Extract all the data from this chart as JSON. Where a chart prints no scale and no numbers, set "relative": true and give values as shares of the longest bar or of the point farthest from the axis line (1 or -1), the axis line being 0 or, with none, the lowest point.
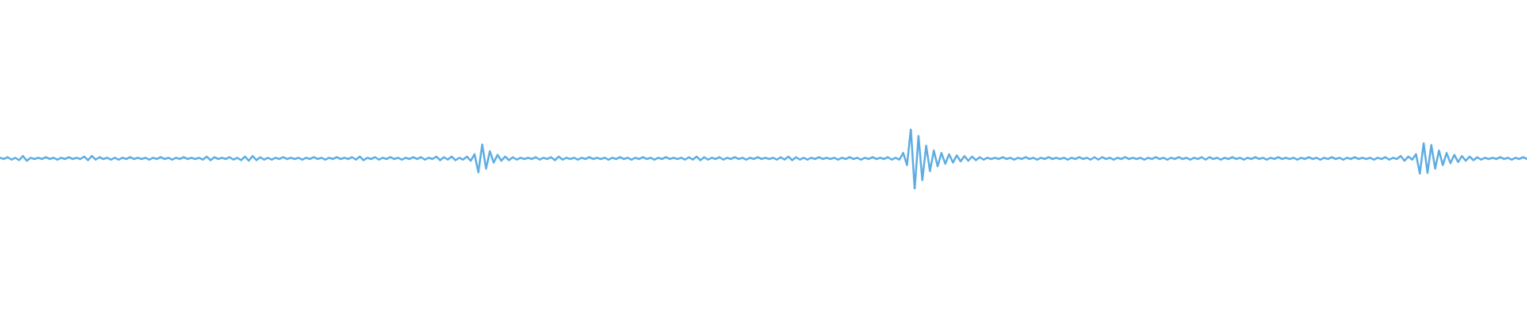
{
  "chart_data": {
    "type": "line",
    "relative": true,
    "color": "#5dade2",
    "categories": [
      null,
      null,
      null,
      null,
      null,
      null,
      null,
      null,
      null,
      null,
      null,
      null,
      null,
      null,
      null,
      null,
      null,
      null,
      null,
      null,
      null,
      null,
      null,
      null,
      null,
      null,
      null,
      null,
      null,
      null,
      null,
      null,
      null,
      null,
      null,
      null,
      null,
      null,
      null,
      null,
      null,
      null,
      null,
      null,
      null,
      null,
      null,
      null,
      null,
      null,
      null,
      null,
      null,
      null,
      null,
      null,
      null,
      null,
      null,
      null,
      null,
      null,
      null,
      null,
      null,
      null,
      null,
      null,
      null,
      null,
      null,
      null,
      null,
      null,
      null,
      null,
      null,
      null,
      null,
      null,
      null,
      null,
      null,
      null,
      null,
      null,
      null,
      null,
      null,
      null,
      null,
      null,
      null,
      null,
      null,
      null,
      null,
      null,
      null,
      null,
      null,
      null,
      null,
      null,
      null,
      null,
      null,
      null,
      null,
      null,
      null,
      null,
      null,
      null,
      null,
      null,
      null,
      null,
      null,
      null,
      null,
      null,
      null,
      null,
      null,
      null,
      null,
      null,
      null,
      null,
      null,
      null,
      null,
      null,
      null,
      null,
      null,
      null,
      null,
      null,
      null,
      null,
      null,
      null,
      null,
      null,
      null,
      null,
      null,
      null,
      null,
      null,
      null,
      null,
      null,
      null,
      null,
      null,
      null,
      null,
      null,
      null,
      null,
      null,
      null,
      null,
      null,
      null,
      null,
      null,
      null,
      null,
      null,
      null,
      null,
      null,
      null,
      null,
      null,
      null,
      null,
      null,
      null,
      null,
      null,
      null,
      null,
      null,
      null,
      null,
      null,
      null,
      null,
      null,
      null,
      null,
      null,
      null,
      null,
      null,
      null,
      null,
      null,
      null,
      null,
      null,
      null,
      null,
      null,
      null,
      null,
      null,
      null,
      null,
      null,
      null,
      null,
      null,
      null,
      null,
      null,
      null,
      null,
      null,
      null,
      null,
      null,
      null,
      null,
      null,
      null,
      null,
      null,
      null,
      null,
      null,
      null,
      null,
      null,
      null,
      null,
      null,
      null,
      null,
      null,
      null,
      null,
      null,
      null,
      null,
      null,
      null,
      null,
      null,
      null,
      null,
      null,
      null,
      null,
      null,
      null,
      null,
      null,
      null,
      null,
      null,
      null,
      null,
      null,
      null,
      null,
      null,
      null,
      null,
      null,
      null,
      null,
      null,
      null,
      null,
      null,
      null,
      null,
      null,
      null,
      null,
      null,
      null,
      null,
      null,
      null,
      null,
      null,
      null,
      null,
      null,
      null,
      null,
      null,
      null,
      null,
      null,
      null,
      null,
      null,
      null,
      null,
      null,
      null,
      null,
      null,
      null,
      null,
      null,
      null,
      null,
      null,
      null,
      null,
      null,
      null,
      null,
      null,
      null,
      null,
      null,
      null,
      null,
      null,
      null,
      null,
      null,
      null,
      null,
      null,
      null,
      null,
      null,
      null,
      null,
      null,
      null,
      null,
      null,
      null,
      null,
      null,
      null,
      null,
      null,
      null,
      null,
      null,
      null,
      null,
      null,
      null,
      null,
      null,
      null,
      null,
      null,
      null,
      null,
      null,
      null,
      null,
      null,
      null,
      null,
      null,
      null,
      null,
      null,
      null,
      null,
      null,
      null,
      null,
      null,
      null,
      null,
      null,
      null,
      null,
      null,
      null,
      null,
      null,
      null,
      null,
      null,
      null,
      null,
      null,
      null,
      null,
      null,
      null,
      null
    ],
    "values": [
      0.52,
      0.5,
      0.53,
      0.49,
      0.52,
      0.48,
      0.55,
      0.47,
      0.52,
      0.5,
      0.52,
      0.5,
      0.53,
      0.5,
      0.52,
      0.49,
      0.52,
      0.5,
      0.53,
      0.5,
      0.52,
      0.5,
      0.54,
      0.48,
      0.55,
      0.49,
      0.53,
      0.5,
      0.52,
      0.49,
      0.52,
      0.49,
      0.52,
      0.5,
      0.53,
      0.5,
      0.52,
      0.5,
      0.52,
      0.49,
      0.52,
      0.5,
      0.53,
      0.5,
      0.52,
      0.49,
      0.52,
      0.5,
      0.53,
      0.5,
      0.52,
      0.5,
      0.52,
      0.49,
      0.54,
      0.48,
      0.53,
      0.5,
      0.52,
      0.5,
      0.53,
      0.49,
      0.52,
      0.48,
      0.54,
      0.47,
      0.55,
      0.48,
      0.53,
      0.49,
      0.52,
      0.49,
      0.52,
      0.5,
      0.53,
      0.5,
      0.52,
      0.5,
      0.52,
      0.49,
      0.52,
      0.5,
      0.53,
      0.5,
      0.52,
      0.49,
      0.52,
      0.5,
      0.53,
      0.5,
      0.52,
      0.5,
      0.53,
      0.49,
      0.54,
      0.48,
      0.52,
      0.5,
      0.53,
      0.49,
      0.52,
      0.5,
      0.53,
      0.5,
      0.52,
      0.49,
      0.52,
      0.5,
      0.53,
      0.5,
      0.53,
      0.49,
      0.52,
      0.5,
      0.54,
      0.48,
      0.53,
      0.49,
      0.54,
      0.48,
      0.52,
      0.49,
      0.54,
      0.47,
      0.58,
      0.28,
      0.74,
      0.34,
      0.63,
      0.44,
      0.57,
      0.47,
      0.54,
      0.48,
      0.53,
      0.49,
      0.52,
      0.5,
      0.52,
      0.5,
      0.53,
      0.49,
      0.52,
      0.5,
      0.53,
      0.48,
      0.54,
      0.49,
      0.52,
      0.5,
      0.52,
      0.49,
      0.52,
      0.5,
      0.53,
      0.5,
      0.52,
      0.5,
      0.52,
      0.49,
      0.52,
      0.5,
      0.53,
      0.5,
      0.52,
      0.49,
      0.52,
      0.5,
      0.53,
      0.5,
      0.52,
      0.49,
      0.52,
      0.5,
      0.53,
      0.5,
      0.52,
      0.5,
      0.52,
      0.49,
      0.53,
      0.49,
      0.54,
      0.48,
      0.53,
      0.49,
      0.52,
      0.5,
      0.53,
      0.49,
      0.52,
      0.5,
      0.53,
      0.5,
      0.52,
      0.49,
      0.52,
      0.5,
      0.53,
      0.5,
      0.52,
      0.5,
      0.52,
      0.49,
      0.53,
      0.49,
      0.54,
      0.48,
      0.53,
      0.49,
      0.52,
      0.49,
      0.52,
      0.5,
      0.53,
      0.5,
      0.52,
      0.5,
      0.52,
      0.49,
      0.52,
      0.5,
      0.53,
      0.5,
      0.52,
      0.49,
      0.52,
      0.5,
      0.53,
      0.5,
      0.52,
      0.5,
      0.53,
      0.49,
      0.52,
      0.49,
      0.6,
      0.4,
      1,
      0,
      0.88,
      0.15,
      0.72,
      0.3,
      0.64,
      0.38,
      0.6,
      0.42,
      0.58,
      0.44,
      0.56,
      0.46,
      0.55,
      0.47,
      0.54,
      0.48,
      0.53,
      0.49,
      0.52,
      0.5,
      0.52,
      0.5,
      0.53,
      0.5,
      0.52,
      0.49,
      0.52,
      0.5,
      0.53,
      0.5,
      0.52,
      0.49,
      0.52,
      0.5,
      0.53,
      0.5,
      0.52,
      0.5,
      0.52,
      0.49,
      0.52,
      0.5,
      0.53,
      0.5,
      0.52,
      0.49,
      0.53,
      0.49,
      0.53,
      0.5,
      0.52,
      0.49,
      0.52,
      0.5,
      0.53,
      0.5,
      0.52,
      0.5,
      0.52,
      0.49,
      0.52,
      0.5,
      0.53,
      0.5,
      0.52,
      0.49,
      0.52,
      0.5,
      0.53,
      0.5,
      0.52,
      0.49,
      0.52,
      0.5,
      0.53,
      0.49,
      0.53,
      0.5,
      0.52,
      0.49,
      0.52,
      0.5,
      0.53,
      0.5,
      0.52,
      0.49,
      0.52,
      0.5,
      0.53,
      0.5,
      0.52,
      0.49,
      0.52,
      0.5,
      0.53,
      0.5,
      0.52,
      0.5,
      0.52,
      0.49,
      0.52,
      0.5,
      0.53,
      0.5,
      0.52,
      0.49,
      0.52,
      0.5,
      0.53,
      0.5,
      0.52,
      0.49,
      0.52,
      0.5,
      0.53,
      0.5,
      0.52,
      0.5,
      0.52,
      0.49,
      0.52,
      0.5,
      0.53,
      0.49,
      0.52,
      0.5,
      0.55,
      0.47,
      0.54,
      0.49,
      0.58,
      0.26,
      0.76,
      0.27,
      0.73,
      0.34,
      0.64,
      0.4,
      0.6,
      0.43,
      0.57,
      0.45,
      0.55,
      0.47,
      0.54,
      0.48,
      0.53,
      0.49,
      0.52,
      0.5,
      0.52,
      0.5,
      0.53,
      0.5,
      0.52,
      0.49,
      0.52,
      0.5,
      0.53,
      0.5
    ]
  }
}
